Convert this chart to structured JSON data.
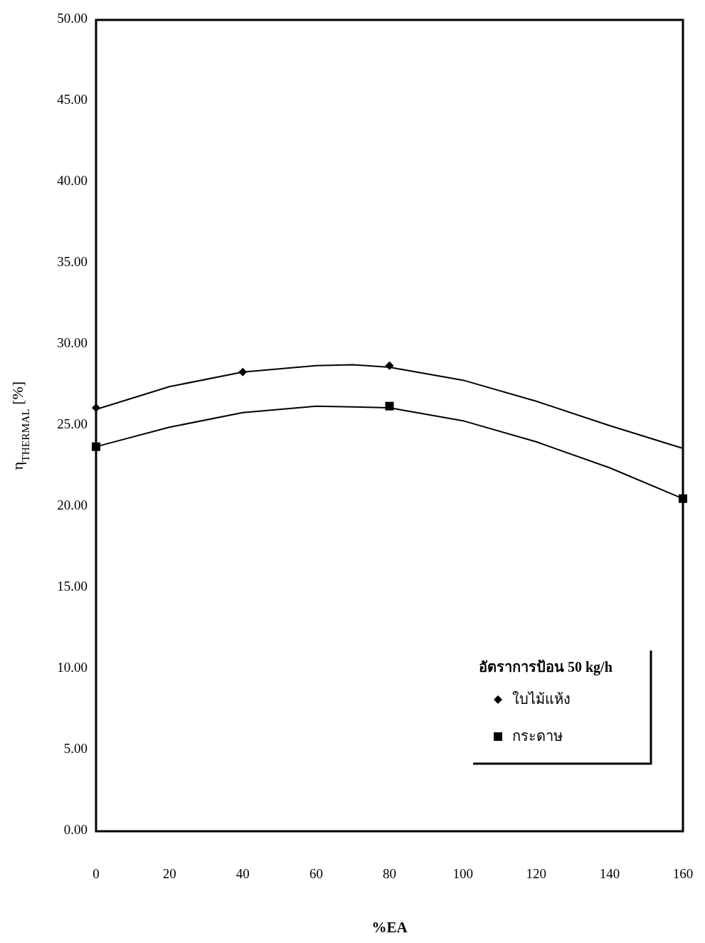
{
  "chart_data": {
    "type": "scatter",
    "xlabel": "%EA",
    "ylabel": "η$_{THERMAL}$ [%]",
    "legend_title": "อัตราการป้อน 50 kg/h",
    "legend": "bottom right",
    "grid": false,
    "xlim": [
      0,
      160
    ],
    "xticks": [
      0,
      20,
      40,
      60,
      80,
      100,
      120,
      140,
      160
    ],
    "ylim": [
      0,
      50
    ],
    "yticks": [
      {
        "value": 0,
        "label": "0.00"
      },
      {
        "value": 5,
        "label": "5.00"
      },
      {
        "value": 10,
        "label": "10.00"
      },
      {
        "value": 15,
        "label": "15.00"
      },
      {
        "value": 20,
        "label": "20.00"
      },
      {
        "value": 25,
        "label": "25.00"
      },
      {
        "value": 30,
        "label": "30.00"
      },
      {
        "value": 35,
        "label": "35.00"
      },
      {
        "value": 40,
        "label": "40.00"
      },
      {
        "value": 45,
        "label": "45.00"
      },
      {
        "value": 50,
        "label": "50.00"
      }
    ],
    "series": [
      {
        "type": "line",
        "color": "#000000",
        "x": [
          0,
          20,
          40,
          60,
          70,
          80,
          100,
          120,
          140,
          160
        ],
        "values": [
          26.0,
          27.4,
          28.3,
          28.7,
          28.75,
          28.6,
          27.8,
          26.5,
          25.0,
          23.6
        ]
      },
      {
        "type": "line",
        "color": "#000000",
        "x": [
          0,
          20,
          40,
          60,
          80,
          100,
          120,
          140,
          160
        ],
        "values": [
          23.7,
          24.9,
          25.8,
          26.2,
          26.1,
          25.3,
          24.0,
          22.4,
          20.5
        ]
      },
      {
        "name": "ใบไม้แห้ง",
        "color": "#000000",
        "marker": "diamond",
        "x": [
          0,
          40,
          80
        ],
        "values": [
          26.1,
          28.3,
          28.7
        ]
      },
      {
        "name": "กระดาษ",
        "color": "#000000",
        "marker": "square",
        "x": [
          0,
          80,
          160
        ],
        "values": [
          23.7,
          26.2,
          20.5
        ]
      }
    ]
  }
}
